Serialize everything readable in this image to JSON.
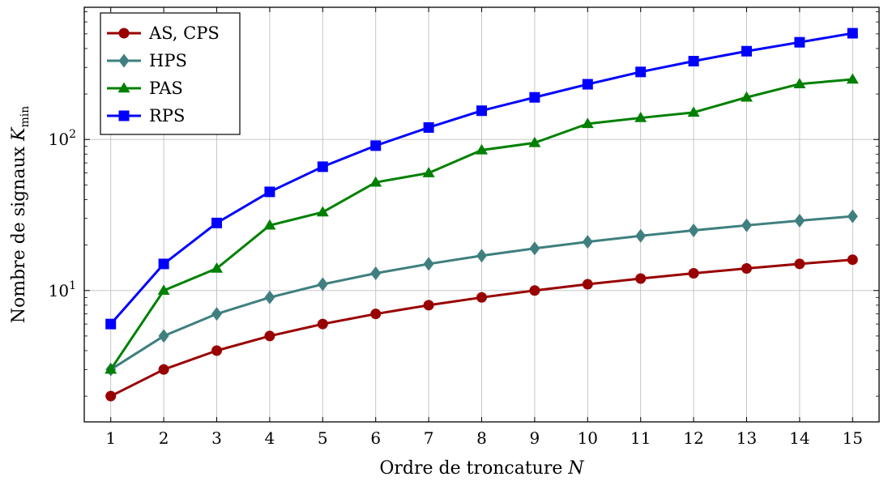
{
  "chart_data": {
    "type": "line",
    "title": "",
    "xlabel": "Ordre de troncature N",
    "ylabel": "Nombre de signaux K_min",
    "ylabel_main": "Nombre de signaux ",
    "ylabel_var": "K",
    "ylabel_sub": "min",
    "xlabel_main": "Ordre de troncature ",
    "xlabel_var": "N",
    "x": [
      1,
      2,
      3,
      4,
      5,
      6,
      7,
      8,
      9,
      10,
      11,
      12,
      13,
      14,
      15
    ],
    "xlim": [
      0.5,
      15.5
    ],
    "ylim": [
      1.35,
      750
    ],
    "yscale": "log",
    "yticks": [
      {
        "value": 10,
        "base": "10",
        "exp": "1"
      },
      {
        "value": 100,
        "base": "10",
        "exp": "2"
      }
    ],
    "grid": true,
    "legend_position": "top-left",
    "series": [
      {
        "name": "AS, CPS",
        "color": "#990000",
        "marker": "circle",
        "values": [
          2,
          3,
          4,
          5,
          6,
          7,
          8,
          9,
          10,
          11,
          12,
          13,
          14,
          15,
          16
        ]
      },
      {
        "name": "HPS",
        "color": "#3f7f7f",
        "marker": "diamond",
        "values": [
          3,
          5,
          7,
          9,
          11,
          13,
          15,
          17,
          19,
          21,
          23,
          25,
          27,
          29,
          31
        ]
      },
      {
        "name": "PAS",
        "color": "#008000",
        "marker": "triangle",
        "values": [
          3,
          10,
          14,
          27,
          33,
          52,
          60,
          85,
          95,
          127,
          139,
          151,
          190,
          233,
          250
        ]
      },
      {
        "name": "RPS",
        "color": "#0000ff",
        "marker": "square",
        "values": [
          6,
          15,
          28,
          45,
          66,
          91,
          120,
          155,
          190,
          232,
          280,
          330,
          384,
          440,
          505
        ]
      }
    ]
  }
}
